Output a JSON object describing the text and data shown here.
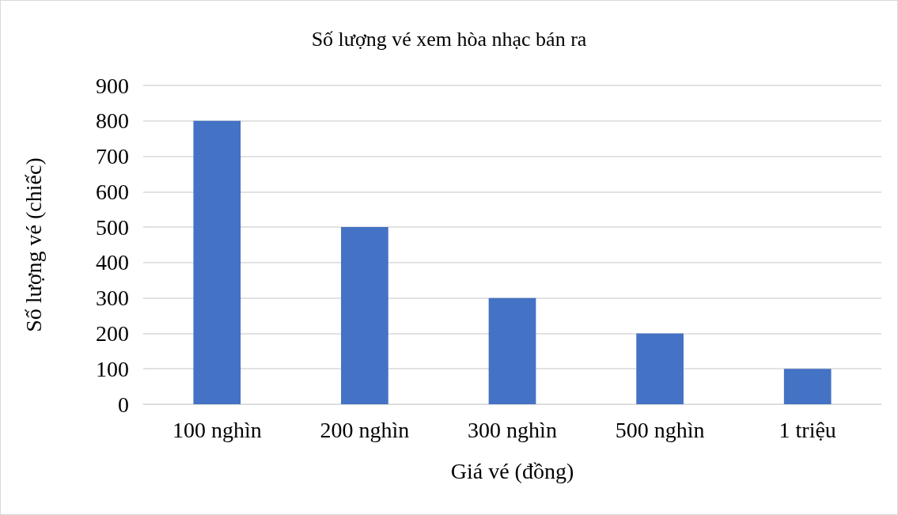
{
  "chart_data": {
    "type": "bar",
    "title": "Số lượng vé xem hòa nhạc bán ra",
    "xlabel": "Giá vé (đồng)",
    "ylabel": "Số lượng vé (chiếc)",
    "categories": [
      "100 nghìn",
      "200 nghìn",
      "300 nghìn",
      "500 nghìn",
      "1 triệu"
    ],
    "values": [
      800,
      500,
      300,
      200,
      100
    ],
    "color": "#4472c4",
    "ylim": [
      0,
      900
    ],
    "yticks": [
      0,
      100,
      200,
      300,
      400,
      500,
      600,
      700,
      800,
      900
    ],
    "grid": "y"
  }
}
